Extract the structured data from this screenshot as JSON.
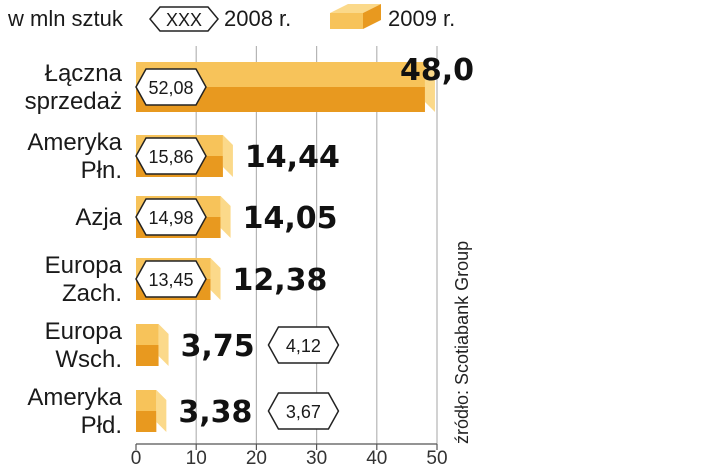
{
  "legend": {
    "unit": "w mln sztuk",
    "hex_text": "XXX",
    "label_2008": "2008 r.",
    "label_2009": "2009 r."
  },
  "source": "źródło: Scotiabank Group",
  "colors": {
    "bar_top": "#f7c35a",
    "bar_bottom": "#e8991f",
    "bar_end": "#fbd98a",
    "grid": "#b5b5b5",
    "hex_fill": "#ffffff",
    "hex_stroke": "#222222"
  },
  "chart_data": {
    "type": "bar",
    "orientation": "horizontal",
    "categories": [
      [
        "Łączna",
        "sprzedaż"
      ],
      [
        "Ameryka",
        "Płn."
      ],
      [
        "Azja"
      ],
      [
        "Europa",
        "Zach."
      ],
      [
        "Europa",
        "Wsch."
      ],
      [
        "Ameryka",
        "Płd."
      ]
    ],
    "series": [
      {
        "name": "2009 r.",
        "values": [
          48.0,
          14.44,
          14.05,
          12.38,
          3.75,
          3.38
        ]
      },
      {
        "name": "2008 r.",
        "values": [
          52.08,
          15.86,
          14.98,
          13.45,
          4.12,
          3.67
        ]
      }
    ],
    "labels_2009": [
      "48,0",
      "14,44",
      "14,05",
      "12,38",
      "3,75",
      "3,38"
    ],
    "labels_2008": [
      "52,08",
      "15,86",
      "14,98",
      "13,45",
      "4,12",
      "3,67"
    ],
    "xlim": [
      0,
      50
    ],
    "xticks": [
      "0",
      "10",
      "20",
      "30",
      "40",
      "50"
    ],
    "grid": true
  }
}
